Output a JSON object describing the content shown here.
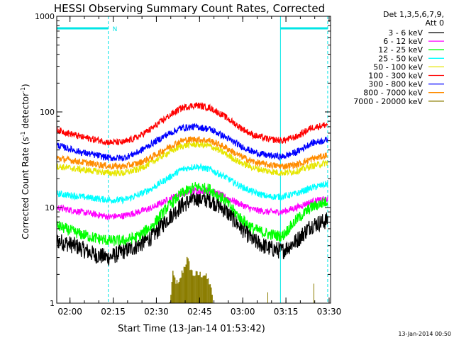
{
  "chart_data": {
    "type": "line",
    "title": "HESSI Observing Summary Count Rates, Corrected",
    "xlabel": "Start Time (13-Jan-14 01:53:42)",
    "ylabel_main": "Corrected Count Rate (s",
    "ylabel_sup1": "-1",
    "ylabel_mid": " detector",
    "ylabel_sup2": "-1",
    "ylabel_end": ")",
    "y_scale": "log",
    "ylim": [
      1,
      1000
    ],
    "xlim_minutes": [
      1.7,
      96.8
    ],
    "xtick_labels": [
      "02:00",
      "02:15",
      "02:30",
      "02:45",
      "03:00",
      "03:15",
      "03:30"
    ],
    "xtick_minutes": [
      6.3,
      21.3,
      36.3,
      51.3,
      66.3,
      81.3,
      96.3
    ],
    "ytick_labels": [
      "1",
      "10",
      "100",
      "1000"
    ],
    "ytick_values": [
      1,
      10,
      100,
      1000
    ],
    "legend_header_line1": "Det 1,3,5,6,7,9,",
    "legend_header_line2": "Att 0",
    "legend_position": "top-right outside",
    "footer_timestamp": "13-Jan-2014 00:50",
    "night_marks": {
      "solid_lines_minutes": [
        1.7,
        79.4
      ],
      "dashed_lines_minutes": [
        19.6,
        95.8
      ],
      "bars": [
        {
          "from": 1.7,
          "to": 19.6
        },
        {
          "from": 79.4,
          "to": 95.8
        }
      ],
      "label": "N",
      "color": "#00e5e5"
    },
    "series": [
      {
        "name": "3 - 6 keV",
        "color": "#000000",
        "points": [
          [
            1.7,
            4.5
          ],
          [
            8,
            4.0
          ],
          [
            15,
            3.2
          ],
          [
            20,
            3.0
          ],
          [
            25,
            3.5
          ],
          [
            30,
            4.0
          ],
          [
            35,
            5.0
          ],
          [
            40,
            7.5
          ],
          [
            45,
            10.5
          ],
          [
            50,
            12.5
          ],
          [
            55,
            12.0
          ],
          [
            60,
            9.5
          ],
          [
            65,
            6.5
          ],
          [
            70,
            4.5
          ],
          [
            75,
            3.8
          ],
          [
            80,
            3.5
          ],
          [
            85,
            4.5
          ],
          [
            90,
            6.5
          ],
          [
            96.8,
            7.5
          ]
        ]
      },
      {
        "name": "6 - 12 keV",
        "color": "#ff00ff",
        "points": [
          [
            1.7,
            10
          ],
          [
            10,
            9
          ],
          [
            20,
            8
          ],
          [
            25,
            8.2
          ],
          [
            30,
            9
          ],
          [
            35,
            10
          ],
          [
            40,
            12
          ],
          [
            45,
            14
          ],
          [
            50,
            15
          ],
          [
            55,
            15
          ],
          [
            60,
            13
          ],
          [
            65,
            11
          ],
          [
            70,
            9.5
          ],
          [
            75,
            9
          ],
          [
            80,
            9
          ],
          [
            85,
            10
          ],
          [
            90,
            11.5
          ],
          [
            96.8,
            12.5
          ]
        ]
      },
      {
        "name": "12 - 25 keV",
        "color": "#00ff00",
        "points": [
          [
            1.7,
            6.5
          ],
          [
            8,
            5.5
          ],
          [
            15,
            4.8
          ],
          [
            20,
            4.5
          ],
          [
            25,
            4.5
          ],
          [
            30,
            5.0
          ],
          [
            35,
            6.5
          ],
          [
            40,
            10
          ],
          [
            45,
            14
          ],
          [
            50,
            16.5
          ],
          [
            55,
            15.5
          ],
          [
            60,
            12
          ],
          [
            65,
            8
          ],
          [
            70,
            6
          ],
          [
            75,
            5.3
          ],
          [
            80,
            5.0
          ],
          [
            85,
            7.5
          ],
          [
            90,
            10
          ],
          [
            96.8,
            12
          ]
        ]
      },
      {
        "name": "25 - 50 keV",
        "color": "#00ffff",
        "points": [
          [
            1.7,
            14
          ],
          [
            10,
            13
          ],
          [
            20,
            12
          ],
          [
            25,
            12
          ],
          [
            30,
            13.5
          ],
          [
            35,
            16
          ],
          [
            40,
            20
          ],
          [
            45,
            25
          ],
          [
            50,
            27
          ],
          [
            55,
            25
          ],
          [
            60,
            21
          ],
          [
            65,
            17
          ],
          [
            70,
            14.5
          ],
          [
            75,
            13
          ],
          [
            80,
            13
          ],
          [
            85,
            14
          ],
          [
            90,
            16
          ],
          [
            96.8,
            18
          ]
        ]
      },
      {
        "name": "50 - 100 keV",
        "color": "#e6e600",
        "points": [
          [
            1.7,
            27
          ],
          [
            10,
            25
          ],
          [
            20,
            23
          ],
          [
            25,
            23
          ],
          [
            30,
            25
          ],
          [
            35,
            30
          ],
          [
            40,
            37
          ],
          [
            45,
            44
          ],
          [
            50,
            46
          ],
          [
            55,
            44
          ],
          [
            60,
            37
          ],
          [
            65,
            30
          ],
          [
            70,
            26
          ],
          [
            75,
            24
          ],
          [
            80,
            23
          ],
          [
            85,
            24
          ],
          [
            90,
            27
          ],
          [
            96.8,
            30
          ]
        ]
      },
      {
        "name": "100 - 300 keV",
        "color": "#ff0000",
        "points": [
          [
            1.7,
            65
          ],
          [
            10,
            55
          ],
          [
            20,
            48
          ],
          [
            25,
            48
          ],
          [
            30,
            55
          ],
          [
            35,
            68
          ],
          [
            40,
            88
          ],
          [
            45,
            110
          ],
          [
            50,
            118
          ],
          [
            55,
            110
          ],
          [
            60,
            90
          ],
          [
            65,
            70
          ],
          [
            70,
            57
          ],
          [
            75,
            52
          ],
          [
            80,
            50
          ],
          [
            85,
            55
          ],
          [
            90,
            68
          ],
          [
            96.8,
            75
          ]
        ]
      },
      {
        "name": "300 - 800 keV",
        "color": "#0000ff",
        "points": [
          [
            1.7,
            45
          ],
          [
            10,
            38
          ],
          [
            20,
            33
          ],
          [
            25,
            33
          ],
          [
            30,
            38
          ],
          [
            35,
            47
          ],
          [
            40,
            58
          ],
          [
            45,
            68
          ],
          [
            50,
            70
          ],
          [
            55,
            66
          ],
          [
            60,
            55
          ],
          [
            65,
            45
          ],
          [
            70,
            38
          ],
          [
            75,
            35
          ],
          [
            80,
            34
          ],
          [
            85,
            38
          ],
          [
            90,
            47
          ],
          [
            96.8,
            52
          ]
        ]
      },
      {
        "name": "800 - 7000 keV",
        "color": "#ff8c00",
        "points": [
          [
            1.7,
            33
          ],
          [
            10,
            30
          ],
          [
            20,
            27
          ],
          [
            25,
            27
          ],
          [
            30,
            29
          ],
          [
            35,
            34
          ],
          [
            40,
            42
          ],
          [
            45,
            50
          ],
          [
            50,
            52
          ],
          [
            55,
            50
          ],
          [
            60,
            43
          ],
          [
            65,
            35
          ],
          [
            70,
            30
          ],
          [
            75,
            28
          ],
          [
            80,
            27
          ],
          [
            85,
            28
          ],
          [
            90,
            32
          ],
          [
            96.8,
            36
          ]
        ]
      },
      {
        "name": "7000 - 20000 keV",
        "color": "#8b7d00",
        "points": [
          [
            41,
            1.0
          ],
          [
            42,
            2.0
          ],
          [
            44,
            1.5
          ],
          [
            45,
            2.0
          ],
          [
            47,
            2.9
          ],
          [
            49,
            2.0
          ],
          [
            51,
            2.0
          ],
          [
            53,
            2.0
          ],
          [
            55,
            1.6
          ],
          [
            56,
            1.0
          ],
          [
            74,
            1.0
          ],
          [
            75,
            1.3
          ],
          [
            76,
            1.0
          ],
          [
            90,
            1.0
          ],
          [
            91,
            1.6
          ],
          [
            92,
            1.0
          ]
        ]
      }
    ]
  }
}
